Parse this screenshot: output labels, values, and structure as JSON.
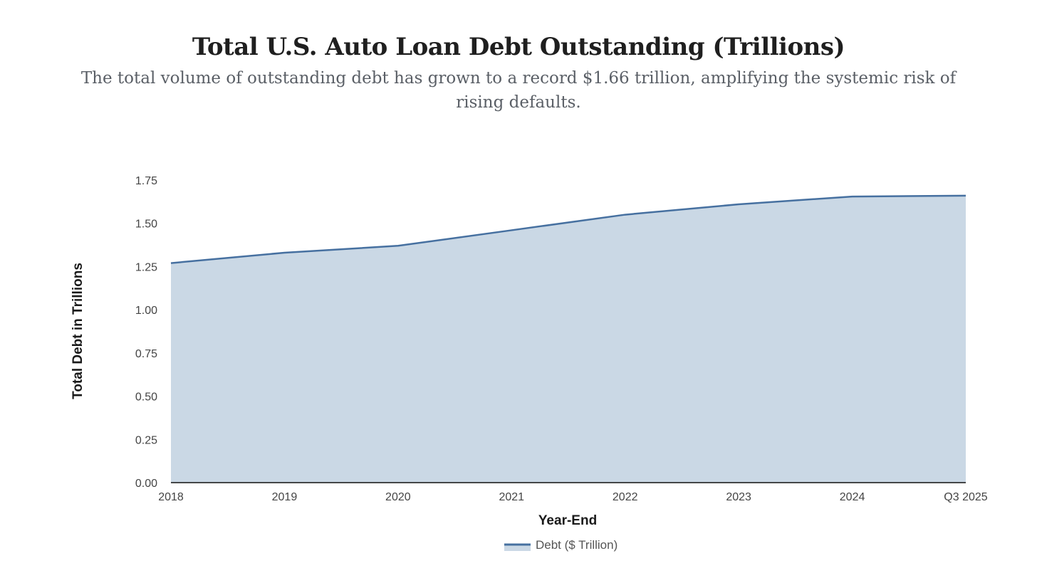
{
  "header": {
    "title": "Total U.S. Auto Loan Debt Outstanding (Trillions)",
    "subtitle": "The total volume of outstanding debt has grown to a record $1.66 trillion, amplifying the systemic risk of rising defaults."
  },
  "chart_data": {
    "type": "area",
    "categories": [
      "2018",
      "2019",
      "2020",
      "2021",
      "2022",
      "2023",
      "2024",
      "Q3 2025"
    ],
    "series": [
      {
        "name": "Debt ($ Trillion)",
        "values": [
          1.27,
          1.33,
          1.37,
          1.46,
          1.55,
          1.61,
          1.655,
          1.66
        ]
      }
    ],
    "xlabel": "Year-End",
    "ylabel": "Total Debt in Trillions",
    "ylim": [
      0,
      1.75
    ],
    "yticks": [
      "0.00",
      "0.25",
      "0.50",
      "0.75",
      "1.00",
      "1.25",
      "1.50",
      "1.75"
    ],
    "grid": false,
    "legend": "bottom-center",
    "colors": {
      "line": "#4670a0",
      "fill": "#cad8e5",
      "axis": "#111111"
    }
  }
}
